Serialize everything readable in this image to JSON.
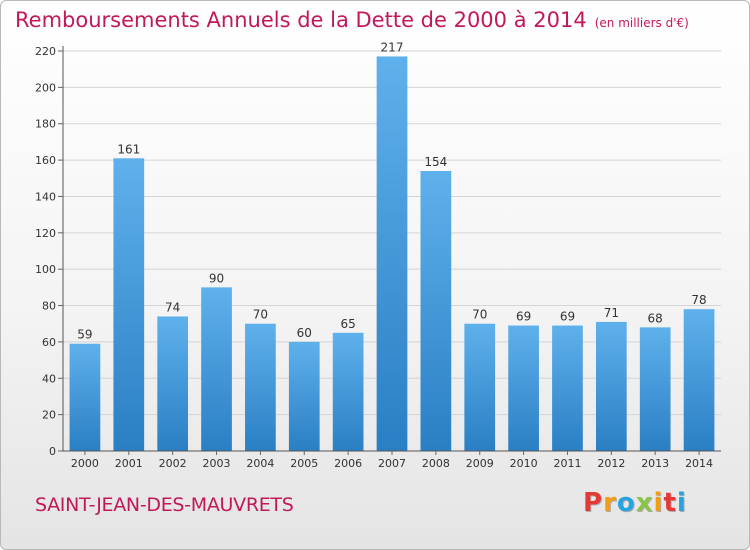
{
  "header": {
    "title": "Remboursements Annuels de la Dette de 2000 à 2014",
    "subtitle": "(en milliers d'€)"
  },
  "footer": {
    "commune": "SAINT-JEAN-DES-MAUVRETS",
    "brand": "Proxiti",
    "brand_colors": [
      "#e53935",
      "#f39c12",
      "#27a4dd",
      "#8bc34a",
      "#f39c12",
      "#e53935",
      "#27a4dd"
    ]
  },
  "colors": {
    "bar_top": "#5fb1ec",
    "bar_bottom": "#2a7fc4",
    "title": "#c2185b",
    "grid": "#d4d4d4"
  },
  "chart_data": {
    "type": "bar",
    "title": "Remboursements Annuels de la Dette de 2000 à 2014",
    "ylabel": "en milliers d'€",
    "xlabel": "",
    "categories": [
      "2000",
      "2001",
      "2002",
      "2003",
      "2004",
      "2005",
      "2006",
      "2007",
      "2008",
      "2009",
      "2010",
      "2011",
      "2012",
      "2013",
      "2014"
    ],
    "values": [
      59,
      161,
      74,
      90,
      70,
      60,
      65,
      217,
      154,
      70,
      69,
      69,
      71,
      68,
      78
    ],
    "ylim": [
      0,
      220
    ],
    "yticks": [
      0,
      20,
      40,
      60,
      80,
      100,
      120,
      140,
      160,
      180,
      200,
      220
    ],
    "grid": true
  }
}
